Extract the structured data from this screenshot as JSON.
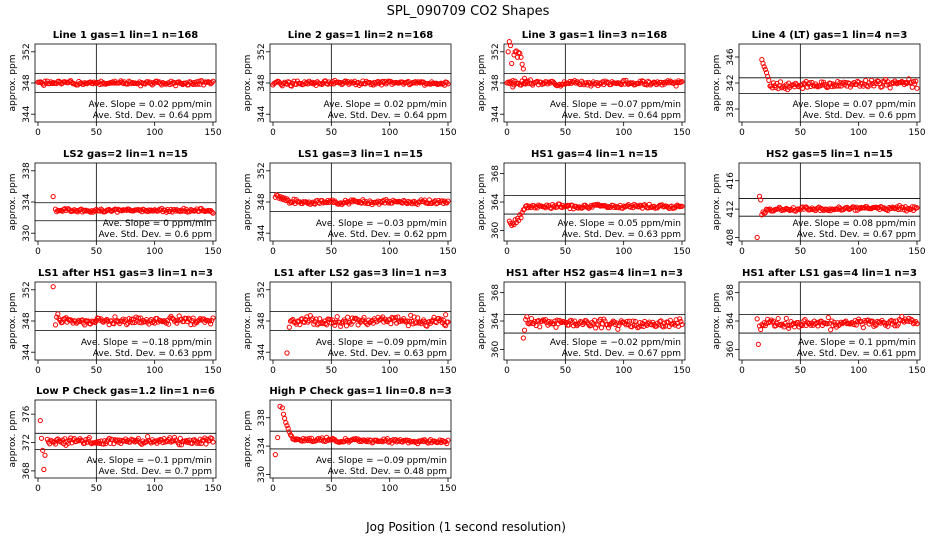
{
  "figure": {
    "title": "SPL_090709  CO2 Shapes",
    "xlabel": "Jog Position (1 second resolution)"
  },
  "chart_data": [
    {
      "type": "scatter",
      "title": "Line 1 gas=1 lin=1 n=168",
      "ylabel": "approx. ppm",
      "xlim": [
        0,
        150
      ],
      "ylim": [
        343,
        353
      ],
      "xticks": [
        0,
        50,
        100,
        150
      ],
      "yticks": [
        344,
        348,
        352
      ],
      "hlines": [
        349.2,
        346.8
      ],
      "vline": 50,
      "slope_text": "Ave. Slope = 0.02 ppm/min",
      "sd_text": "Ave. Std. Dev. = 0.64 ppm",
      "series": [
        {
          "name": "",
          "color": "#ff0000",
          "points": []
        }
      ],
      "gen": {
        "seed": 1,
        "start": 0,
        "step": 1,
        "end": 150,
        "mean": 348,
        "noise": 0.15,
        "slope": 0,
        "head": []
      }
    },
    {
      "type": "scatter",
      "title": "Line 2 gas=1 lin=2 n=168",
      "ylabel": "approx. ppm",
      "xlim": [
        0,
        150
      ],
      "ylim": [
        343,
        353
      ],
      "xticks": [
        0,
        50,
        100,
        150
      ],
      "yticks": [
        344,
        348,
        352
      ],
      "hlines": [
        349.2,
        346.8
      ],
      "vline": 50,
      "slope_text": "Ave. Slope = 0.02 ppm/min",
      "sd_text": "Ave. Std. Dev. = 0.64 ppm",
      "series": [
        {
          "name": "",
          "color": "#ff0000",
          "points": []
        }
      ],
      "gen": {
        "seed": 2,
        "start": 0,
        "step": 1,
        "end": 150,
        "mean": 348,
        "noise": 0.15,
        "slope": 0,
        "head": []
      }
    },
    {
      "type": "scatter",
      "title": "Line 3 gas=1 lin=3 n=168",
      "ylabel": "approx. ppm",
      "xlim": [
        0,
        150
      ],
      "ylim": [
        343,
        353
      ],
      "xticks": [
        0,
        50,
        100,
        150
      ],
      "yticks": [
        344,
        348,
        352
      ],
      "hlines": [
        349.2,
        346.8
      ],
      "vline": 50,
      "slope_text": "Ave. Slope = −0.07 ppm/min",
      "sd_text": "Ave. Std. Dev. = 0.64 ppm",
      "series": [
        {
          "name": "",
          "color": "#ff0000",
          "points": []
        }
      ],
      "gen": {
        "seed": 3,
        "start": 0,
        "step": 1,
        "end": 150,
        "mean": 348,
        "noise": 0.15,
        "slope": 0,
        "head": [
          [
            1,
            352
          ],
          [
            2,
            353.3
          ],
          [
            3,
            352.8
          ],
          [
            4,
            350.5
          ],
          [
            5,
            347.5
          ],
          [
            6,
            351.6
          ],
          [
            7,
            352
          ],
          [
            8,
            352.1
          ],
          [
            9,
            351.3
          ],
          [
            10,
            351.9
          ],
          [
            11,
            351.8
          ],
          [
            12,
            351.3
          ],
          [
            13,
            350.4
          ],
          [
            14,
            349.8
          ],
          [
            15,
            348.6
          ],
          [
            16,
            348.2
          ]
        ]
      }
    },
    {
      "type": "scatter",
      "title": "Line 4 (LT) gas=1 lin=4 n=3",
      "ylabel": "approx. ppm",
      "xlim": [
        0,
        150
      ],
      "ylim": [
        336,
        348
      ],
      "xticks": [
        0,
        50,
        100,
        150
      ],
      "yticks": [
        338,
        342,
        346
      ],
      "hlines": [
        342.8,
        340.4
      ],
      "vline": 50,
      "slope_text": "Ave. Slope = 0.07 ppm/min",
      "sd_text": "Ave. Std. Dev. = 0.6 ppm",
      "series": [
        {
          "name": "",
          "color": "#ff0000",
          "points": []
        }
      ],
      "gen": {
        "seed": 4,
        "start": 24,
        "step": 1,
        "end": 150,
        "mean": 341.6,
        "noise": 0.3,
        "slope": 0.003,
        "head": [
          [
            17,
            345.6
          ],
          [
            18,
            345
          ],
          [
            19,
            344.5
          ],
          [
            20,
            344.1
          ],
          [
            21,
            343.6
          ],
          [
            22,
            343
          ],
          [
            23,
            342.4
          ]
        ]
      }
    },
    {
      "type": "scatter",
      "title": "LS2 gas=2 lin=1 n=15",
      "ylabel": "approx. ppm",
      "xlim": [
        0,
        150
      ],
      "ylim": [
        329,
        339
      ],
      "xticks": [
        0,
        50,
        100,
        150
      ],
      "yticks": [
        330,
        334,
        338
      ],
      "hlines": [
        333.9,
        331.6
      ],
      "vline": 50,
      "slope_text": "Ave. Slope = 0 ppm/min",
      "sd_text": "Ave. Std. Dev. = 0.6 ppm",
      "series": [
        {
          "name": "",
          "color": "#ff0000",
          "points": []
        }
      ],
      "gen": {
        "seed": 5,
        "start": 15,
        "step": 1,
        "end": 150,
        "mean": 332.9,
        "noise": 0.12,
        "slope": 0,
        "head": [
          [
            13,
            334.7
          ]
        ]
      }
    },
    {
      "type": "scatter",
      "title": "LS1 gas=3 lin=1 n=15",
      "ylabel": "approx. ppm",
      "xlim": [
        0,
        150
      ],
      "ylim": [
        343,
        353
      ],
      "xticks": [
        0,
        50,
        100,
        150
      ],
      "yticks": [
        344,
        348,
        352
      ],
      "hlines": [
        349.2,
        346.8
      ],
      "vline": 50,
      "slope_text": "Ave. Slope = −0.03 ppm/min",
      "sd_text": "Ave. Std. Dev. = 0.62 ppm",
      "series": [
        {
          "name": "",
          "color": "#ff0000",
          "points": []
        }
      ],
      "gen": {
        "seed": 6,
        "start": 14,
        "step": 1,
        "end": 150,
        "mean": 348,
        "noise": 0.15,
        "slope": 0,
        "head": [
          [
            2,
            348.6
          ],
          [
            3,
            348.9
          ],
          [
            4,
            348.8
          ],
          [
            5,
            348.5
          ],
          [
            6,
            348.7
          ],
          [
            7,
            348.4
          ],
          [
            8,
            348.6
          ],
          [
            9,
            348.3
          ],
          [
            10,
            348.5
          ],
          [
            11,
            348.2
          ],
          [
            12,
            348.4
          ],
          [
            13,
            348.2
          ]
        ]
      }
    },
    {
      "type": "scatter",
      "title": "HS1 gas=4 lin=1 n=15",
      "ylabel": "approx. ppm",
      "xlim": [
        0,
        150
      ],
      "ylim": [
        358.5,
        369.5
      ],
      "xticks": [
        0,
        50,
        100,
        150
      ],
      "yticks": [
        360,
        364,
        368
      ],
      "hlines": [
        364.9,
        362.3
      ],
      "vline": 50,
      "slope_text": "Ave. Slope = 0.05 ppm/min",
      "sd_text": "Ave. Std. Dev. = 0.63 ppm",
      "series": [
        {
          "name": "",
          "color": "#ff0000",
          "points": []
        }
      ],
      "gen": {
        "seed": 7,
        "start": 20,
        "step": 1,
        "end": 150,
        "mean": 363.4,
        "noise": 0.15,
        "slope": 0,
        "head": [
          [
            2,
            361.3
          ],
          [
            3,
            361
          ],
          [
            4,
            360.7
          ],
          [
            5,
            361
          ],
          [
            6,
            360.8
          ],
          [
            7,
            361.5
          ],
          [
            8,
            361.1
          ],
          [
            9,
            361.7
          ],
          [
            10,
            361.4
          ],
          [
            11,
            362.2
          ],
          [
            12,
            361.8
          ],
          [
            13,
            362.5
          ],
          [
            14,
            362.9
          ],
          [
            15,
            363
          ],
          [
            16,
            363.4
          ],
          [
            17,
            363.5
          ],
          [
            18,
            363.2
          ],
          [
            19,
            363.4
          ]
        ]
      }
    },
    {
      "type": "scatter",
      "title": "HS2 gas=5 lin=1 n=15",
      "ylabel": "approx. ppm",
      "xlim": [
        0,
        150
      ],
      "ylim": [
        407.5,
        418.5
      ],
      "xticks": [
        0,
        50,
        100,
        150
      ],
      "yticks": [
        408,
        412,
        416
      ],
      "hlines": [
        413.5,
        411
      ],
      "vline": 50,
      "slope_text": "Ave. Slope = 0.08 ppm/min",
      "sd_text": "Ave. Std. Dev. = 0.67 ppm",
      "series": [
        {
          "name": "",
          "color": "#ff0000",
          "points": []
        }
      ],
      "gen": {
        "seed": 8,
        "start": 21,
        "step": 1,
        "end": 150,
        "mean": 411.9,
        "noise": 0.15,
        "slope": 0.002,
        "head": [
          [
            13,
            408
          ],
          [
            15,
            413.8
          ],
          [
            16,
            413.3
          ],
          [
            17,
            411.2
          ],
          [
            18,
            411.6
          ],
          [
            19,
            411.4
          ],
          [
            20,
            411.5
          ]
        ]
      }
    },
    {
      "type": "scatter",
      "title": "LS1 after HS1 gas=3 lin=1 n=3",
      "ylabel": "approx. ppm",
      "xlim": [
        0,
        150
      ],
      "ylim": [
        343,
        353
      ],
      "xticks": [
        0,
        50,
        100,
        150
      ],
      "yticks": [
        344,
        348,
        352
      ],
      "hlines": [
        349.2,
        346.8
      ],
      "vline": 50,
      "slope_text": "Ave. Slope = −0.18 ppm/min",
      "sd_text": "Ave. Std. Dev. = 0.63 ppm",
      "series": [
        {
          "name": "",
          "color": "#ff0000",
          "points": []
        }
      ],
      "gen": {
        "seed": 9,
        "start": 19,
        "step": 1,
        "end": 150,
        "mean": 348,
        "noise": 0.25,
        "slope": 0,
        "head": [
          [
            13,
            352.4
          ],
          [
            15,
            347.5
          ],
          [
            16,
            348.5
          ],
          [
            17,
            348.9
          ],
          [
            18,
            348.3
          ]
        ]
      }
    },
    {
      "type": "scatter",
      "title": "LS1 after LS2 gas=3 lin=1 n=3",
      "ylabel": "approx. ppm",
      "xlim": [
        0,
        150
      ],
      "ylim": [
        343,
        353
      ],
      "xticks": [
        0,
        50,
        100,
        150
      ],
      "yticks": [
        344,
        348,
        352
      ],
      "hlines": [
        349.2,
        346.8
      ],
      "vline": 50,
      "slope_text": "Ave. Slope = −0.09 ppm/min",
      "sd_text": "Ave. Std. Dev. = 0.63 ppm",
      "series": [
        {
          "name": "",
          "color": "#ff0000",
          "points": []
        }
      ],
      "gen": {
        "seed": 10,
        "start": 15,
        "step": 1,
        "end": 150,
        "mean": 348,
        "noise": 0.3,
        "slope": 0,
        "head": [
          [
            12,
            343.9
          ],
          [
            14,
            347.2
          ],
          [
            148,
            348.8
          ]
        ]
      }
    },
    {
      "type": "scatter",
      "title": "HS1 after HS2 gas=4 lin=1 n=3",
      "ylabel": "approx. ppm",
      "xlim": [
        0,
        150
      ],
      "ylim": [
        358.5,
        369.5
      ],
      "xticks": [
        0,
        50,
        100,
        150
      ],
      "yticks": [
        360,
        364,
        368
      ],
      "hlines": [
        364.9,
        362.3
      ],
      "vline": 50,
      "slope_text": "Ave. Slope = −0.02 ppm/min",
      "sd_text": "Ave. Std. Dev. = 0.67 ppm",
      "series": [
        {
          "name": "",
          "color": "#ff0000",
          "points": []
        }
      ],
      "gen": {
        "seed": 11,
        "start": 18,
        "step": 1,
        "end": 150,
        "mean": 363.8,
        "noise": 0.3,
        "slope": -0.002,
        "head": [
          [
            14,
            361.6
          ],
          [
            15,
            362.7
          ],
          [
            16,
            364.2
          ],
          [
            17,
            364.6
          ]
        ]
      }
    },
    {
      "type": "scatter",
      "title": "HS1 after LS1 gas=4 lin=1 n=3",
      "ylabel": "approx. ppm",
      "xlim": [
        0,
        150
      ],
      "ylim": [
        358.5,
        369.5
      ],
      "xticks": [
        0,
        50,
        100,
        150
      ],
      "yticks": [
        360,
        364,
        368
      ],
      "hlines": [
        364.9,
        362.3
      ],
      "vline": 50,
      "slope_text": "Ave. Slope = 0.1 ppm/min",
      "sd_text": "Ave. Std. Dev. = 0.61 ppm",
      "series": [
        {
          "name": "",
          "color": "#ff0000",
          "points": []
        }
      ],
      "gen": {
        "seed": 12,
        "start": 18,
        "step": 1,
        "end": 150,
        "mean": 363.6,
        "noise": 0.35,
        "slope": 0.002,
        "head": [
          [
            13,
            364.3
          ],
          [
            14,
            360.7
          ],
          [
            15,
            363.3
          ],
          [
            16,
            362.8
          ],
          [
            17,
            363.5
          ]
        ]
      }
    },
    {
      "type": "scatter",
      "title": "Low P Check gas=1.2 lin=1 n=6",
      "ylabel": "approx. ppm",
      "xlim": [
        0,
        150
      ],
      "ylim": [
        367,
        378
      ],
      "xticks": [
        0,
        50,
        100,
        150
      ],
      "yticks": [
        368,
        372,
        376
      ],
      "hlines": [
        373.3,
        371
      ],
      "vline": 50,
      "slope_text": "Ave. Slope = −0.1 ppm/min",
      "sd_text": "Ave. Std. Dev. = 0.7 ppm",
      "series": [
        {
          "name": "",
          "color": "#ff0000",
          "points": []
        }
      ],
      "gen": {
        "seed": 13,
        "start": 8,
        "step": 1,
        "end": 150,
        "mean": 372.2,
        "noise": 0.25,
        "slope": 0,
        "head": [
          [
            2,
            375.1
          ],
          [
            3,
            372.6
          ],
          [
            4,
            370.9
          ],
          [
            5,
            368.2
          ],
          [
            6,
            370.2
          ]
        ]
      }
    },
    {
      "type": "scatter",
      "title": "High P Check gas=1 lin=0.8 n=3",
      "ylabel": "approx. ppm",
      "xlim": [
        0,
        150
      ],
      "ylim": [
        329.5,
        340.5
      ],
      "xticks": [
        0,
        50,
        100,
        150
      ],
      "yticks": [
        330,
        334,
        338
      ],
      "hlines": [
        336.1,
        333.6
      ],
      "vline": 50,
      "slope_text": "Ave. Slope = −0.09 ppm/min",
      "sd_text": "Ave. Std. Dev. = 0.48 ppm",
      "series": [
        {
          "name": "",
          "color": "#ff0000",
          "points": []
        }
      ],
      "gen": {
        "seed": 14,
        "start": 17,
        "step": 1,
        "end": 150,
        "mean": 334.9,
        "noise": 0.15,
        "slope": -0.002,
        "head": [
          [
            2,
            332.8
          ],
          [
            4,
            335.2
          ],
          [
            6,
            339.6
          ],
          [
            8,
            339.4
          ],
          [
            9,
            338.5
          ],
          [
            10,
            337.9
          ],
          [
            11,
            337.3
          ],
          [
            12,
            336.9
          ],
          [
            13,
            336.5
          ],
          [
            14,
            336
          ],
          [
            15,
            335.6
          ],
          [
            16,
            335.4
          ]
        ]
      }
    }
  ]
}
